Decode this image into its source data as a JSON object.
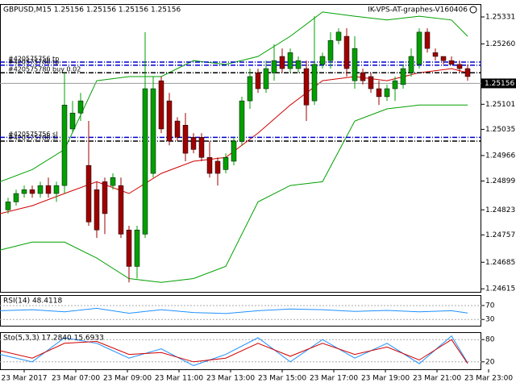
{
  "chart_data": [
    {
      "type": "candlestick",
      "title": "GBPUSD,M15  1.25156 1.25156 1.25156 1.25156",
      "watermark": "IK-VPS-AT-graphes-V160406",
      "x": [
        4.375,
        4.6875,
        5,
        5.3125,
        5.625,
        5.9375,
        6.25,
        6.5625,
        6.875,
        7.1875,
        7.5,
        7.8125,
        8.125,
        8.4375,
        8.75,
        9.0625,
        9.375,
        9.6875,
        10,
        10.3125,
        10.625,
        10.9375,
        11.25,
        11.5625,
        11.875,
        12.1875,
        12.5,
        12.8125,
        13.125,
        13.4375,
        13.75,
        14.0625,
        14.375,
        14.6875,
        15,
        15.3125,
        15.625,
        15.9375,
        16.25,
        16.5625,
        16.875,
        17.1875,
        17.5,
        17.8125,
        18.125,
        18.4375,
        18.75,
        19.0625,
        19.375,
        19.6875,
        20,
        20.3125,
        20.625,
        20.9375,
        21.25,
        21.5625,
        21.875,
        22.1875
      ],
      "open": [
        1.24823,
        1.24844,
        1.24866,
        1.24876,
        1.24866,
        1.24887,
        1.24866,
        1.24887,
        1.25036,
        1.25078,
        1.2494,
        1.24876,
        1.24897,
        1.24887,
        1.24887,
        1.2477,
        1.24674,
        1.24759,
        1.24919,
        1.25163,
        1.2511,
        1.25057,
        1.25046,
        1.25014,
        1.25014,
        1.24961,
        1.24951,
        1.24929,
        1.24951,
        1.25004,
        1.2511,
        1.25184,
        1.25142,
        1.25184,
        1.25227,
        1.25195,
        1.25195,
        1.25195,
        1.2511,
        1.25206,
        1.25216,
        1.25269,
        1.2528,
        1.25163,
        1.25184,
        1.25174,
        1.25142,
        1.25121,
        1.25142,
        1.25153,
        1.25184,
        1.25206,
        1.25291,
        1.25237,
        1.25227,
        1.25216,
        1.25206,
        1.25195
      ],
      "high": [
        1.24855,
        1.24876,
        1.24887,
        1.24887,
        1.24897,
        1.24908,
        1.24897,
        1.25184,
        1.2511,
        1.25131,
        1.25057,
        1.24897,
        1.24908,
        1.24919,
        1.24908,
        1.24781,
        1.24781,
        1.25291,
        1.25174,
        1.25174,
        1.25131,
        1.25067,
        1.25078,
        1.25025,
        1.25025,
        1.25004,
        1.24961,
        1.24972,
        1.25014,
        1.25121,
        1.25195,
        1.25195,
        1.25216,
        1.25259,
        1.25248,
        1.25248,
        1.25227,
        1.25216,
        1.25333,
        1.25237,
        1.25291,
        1.25301,
        1.25301,
        1.2528,
        1.25195,
        1.25184,
        1.25163,
        1.25153,
        1.25174,
        1.25206,
        1.25248,
        1.25301,
        1.25301,
        1.25248,
        1.25227,
        1.25227,
        1.25216,
        1.25206
      ],
      "low": [
        1.24813,
        1.24834,
        1.24855,
        1.24855,
        1.24855,
        1.24855,
        1.24844,
        1.24866,
        1.25025,
        1.25057,
        1.24781,
        1.24749,
        1.24759,
        1.24876,
        1.24749,
        1.24632,
        1.24642,
        1.24749,
        1.24908,
        1.25025,
        1.24993,
        1.25004,
        1.24951,
        1.24972,
        1.24951,
        1.24908,
        1.24887,
        1.24919,
        1.2494,
        1.24993,
        1.25089,
        1.25131,
        1.25131,
        1.25163,
        1.25184,
        1.25184,
        1.25184,
        1.25057,
        1.25099,
        1.25195,
        1.25195,
        1.25259,
        1.25174,
        1.25142,
        1.25153,
        1.25131,
        1.25099,
        1.2511,
        1.2511,
        1.25142,
        1.25174,
        1.25195,
        1.25237,
        1.25216,
        1.25206,
        1.25206,
        1.25184,
        1.25163
      ],
      "close": [
        1.24844,
        1.24866,
        1.24876,
        1.24866,
        1.24887,
        1.24866,
        1.24887,
        1.25099,
        1.25078,
        1.2511,
        1.24791,
        1.2477,
        1.24813,
        1.24908,
        1.24759,
        1.24674,
        1.2477,
        1.25142,
        1.25142,
        1.25036,
        1.25004,
        1.25014,
        1.24972,
        1.24982,
        1.24961,
        1.24919,
        1.24919,
        1.24961,
        1.25004,
        1.2511,
        1.25174,
        1.25142,
        1.25195,
        1.25216,
        1.25195,
        1.25237,
        1.25216,
        1.25099,
        1.25206,
        1.25227,
        1.25269,
        1.25291,
        1.25195,
        1.25248,
        1.25163,
        1.25142,
        1.25121,
        1.25142,
        1.25163,
        1.25195,
        1.25227,
        1.25291,
        1.25248,
        1.25227,
        1.25216,
        1.25206,
        1.25195,
        1.25174
      ],
      "up_color": "#00a000",
      "down_color": "#a00000",
      "lines": [
        {
          "color": "#00a000",
          "x": [
            4.0625,
            5.3125,
            6.5625,
            7.8125,
            9.0625,
            10.3125,
            11.5625,
            12.8125,
            14.0625,
            15.3125,
            16.5625,
            17.8125,
            19.0625,
            20.3125,
            21.5625,
            22.1875
          ],
          "values": [
            1.24897,
            1.24929,
            1.24982,
            1.25163,
            1.25174,
            1.25174,
            1.25216,
            1.25206,
            1.25227,
            1.2528,
            1.25344,
            1.25333,
            1.25323,
            1.25333,
            1.25323,
            1.2528
          ]
        },
        {
          "color": "#00a000",
          "x": [
            4.0625,
            5.3125,
            6.5625,
            7.8125,
            9.0625,
            10.3125,
            11.5625,
            12.8125,
            14.0625,
            15.3125,
            16.5625,
            17.8125,
            19.0625,
            20.3125,
            21.5625,
            22.1875
          ],
          "values": [
            1.24717,
            1.24738,
            1.24738,
            1.24696,
            1.24642,
            1.24632,
            1.24642,
            1.24674,
            1.24844,
            1.24887,
            1.24897,
            1.25057,
            1.25089,
            1.25099,
            1.25099,
            1.25099
          ]
        },
        {
          "color": "#d00000",
          "x": [
            4.0625,
            5.3125,
            6.5625,
            7.8125,
            9.0625,
            10.3125,
            11.5625,
            12.8125,
            14.0625,
            15.3125,
            16.5625,
            17.8125,
            19.0625,
            20.3125,
            21.5625,
            22.1875
          ],
          "values": [
            1.24813,
            1.24834,
            1.24866,
            1.24897,
            1.24866,
            1.24919,
            1.24951,
            1.24961,
            1.25025,
            1.25099,
            1.25163,
            1.25174,
            1.25163,
            1.25184,
            1.25195,
            1.25184
          ]
        }
      ],
      "order_lines": [
        {
          "label": "#420575756 tp",
          "price": 1.25212,
          "color": "#0000cc"
        },
        {
          "label": "#420575780 tp",
          "price": 1.25204,
          "color": "#0000cc"
        },
        {
          "label": "#420575780 buy 0.02",
          "price": 1.25184,
          "color": "#000000"
        },
        {
          "label": "#420575756 sl",
          "price": 1.25014,
          "color": "#0000cc"
        },
        {
          "label": "#420575780 sl",
          "price": 1.25004,
          "color": "#000000"
        }
      ],
      "current_price": 1.25156,
      "xlim": [
        4.0625,
        22.71875
      ],
      "xticks": [
        {
          "value": 5,
          "label": "23 Mar 2017"
        },
        {
          "value": 7,
          "label": "23 Mar 07:00"
        },
        {
          "value": 9,
          "label": "23 Mar 09:00"
        },
        {
          "value": 11,
          "label": "23 Mar 11:00"
        },
        {
          "value": 13,
          "label": "23 Mar 13:00"
        },
        {
          "value": 15,
          "label": "23 Mar 15:00"
        },
        {
          "value": 17,
          "label": "23 Mar 17:00"
        },
        {
          "value": 19,
          "label": "23 Mar 19:00"
        },
        {
          "value": 21,
          "label": "23 Mar 21:00"
        },
        {
          "value": 23,
          "label": "23 Mar 23:00"
        }
      ],
      "ylim": [
        1.24607,
        1.25365
      ],
      "yticks": [
        1.25331,
        {
          "value": 1.2526,
          "label": "1.25260"
        },
        1.25101,
        1.25035,
        1.24966,
        1.24899,
        1.24823,
        1.24757,
        1.24685,
        1.24615
      ]
    },
    {
      "type": "line",
      "title": "RSI(14) 48.4118",
      "grid": true,
      "xlim": [
        4.0625,
        22.71875
      ],
      "ylim": [
        12,
        100
      ],
      "yticks": [
        70,
        30
      ],
      "series": [
        {
          "color": "#1e90ff",
          "x": [
            4.0625,
            5.3125,
            6.5625,
            7.8125,
            9.0625,
            10.3125,
            11.5625,
            12.8125,
            14.0625,
            15.3125,
            16.5625,
            17.8125,
            19.0625,
            20.3125,
            21.5625,
            22.1875
          ],
          "values": [
            55,
            58,
            52,
            62,
            48,
            58,
            50,
            47,
            55,
            60,
            58,
            53,
            56,
            52,
            55,
            48.4118
          ]
        }
      ]
    },
    {
      "type": "line",
      "title": "Sto(5,3,3) 17.2840 15.6933",
      "grid": true,
      "xlim": [
        4.0625,
        22.71875
      ],
      "ylim": [
        0,
        100
      ],
      "yticks": [
        80,
        20
      ],
      "series": [
        {
          "color": "#1e90ff",
          "x": [
            4.0625,
            5.3125,
            6.5625,
            7.8125,
            9.0625,
            10.3125,
            11.5625,
            12.8125,
            14.0625,
            15.3125,
            16.5625,
            17.8125,
            19.0625,
            20.3125,
            21.5625,
            22.1875
          ],
          "values": [
            40,
            20,
            85,
            70,
            30,
            55,
            10,
            40,
            85,
            20,
            80,
            30,
            70,
            15,
            90,
            17.284
          ]
        },
        {
          "color": "#d00000",
          "x": [
            4.0625,
            5.3125,
            6.5625,
            7.8125,
            9.0625,
            10.3125,
            11.5625,
            12.8125,
            14.0625,
            15.3125,
            16.5625,
            17.8125,
            19.0625,
            20.3125,
            21.5625,
            22.1875
          ],
          "values": [
            50,
            30,
            70,
            75,
            40,
            45,
            20,
            30,
            70,
            35,
            70,
            40,
            60,
            25,
            80,
            15.6933
          ]
        }
      ]
    }
  ]
}
